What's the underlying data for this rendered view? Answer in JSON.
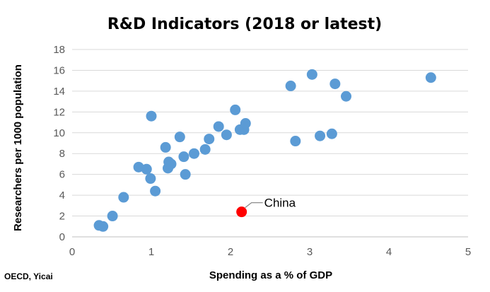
{
  "chart_data": {
    "type": "scatter",
    "title": "R&D Indicators (2018 or latest)",
    "xlabel": "Spending as a % of GDP",
    "ylabel": "Researchers per 1000 population",
    "xlim": [
      0,
      5
    ],
    "ylim": [
      0,
      18
    ],
    "x_ticks": [
      0,
      1,
      2,
      3,
      4,
      5
    ],
    "y_ticks": [
      0,
      2,
      4,
      6,
      8,
      10,
      12,
      14,
      16,
      18
    ],
    "grid": "horizontal",
    "colors": {
      "points": "#5b9bd5",
      "highlight": "#ff0000"
    },
    "points": [
      {
        "x": 0.34,
        "y": 1.1
      },
      {
        "x": 0.39,
        "y": 1.0
      },
      {
        "x": 0.51,
        "y": 2.0
      },
      {
        "x": 0.65,
        "y": 3.8
      },
      {
        "x": 0.84,
        "y": 6.7
      },
      {
        "x": 0.94,
        "y": 6.5
      },
      {
        "x": 0.99,
        "y": 5.6
      },
      {
        "x": 1.0,
        "y": 11.6
      },
      {
        "x": 1.05,
        "y": 4.4
      },
      {
        "x": 1.18,
        "y": 8.6
      },
      {
        "x": 1.21,
        "y": 6.6
      },
      {
        "x": 1.22,
        "y": 7.2
      },
      {
        "x": 1.25,
        "y": 7.0
      },
      {
        "x": 1.36,
        "y": 9.6
      },
      {
        "x": 1.41,
        "y": 7.7
      },
      {
        "x": 1.43,
        "y": 6.0
      },
      {
        "x": 1.54,
        "y": 8.0
      },
      {
        "x": 1.68,
        "y": 8.4
      },
      {
        "x": 1.73,
        "y": 9.4
      },
      {
        "x": 1.85,
        "y": 10.6
      },
      {
        "x": 1.95,
        "y": 9.8
      },
      {
        "x": 2.06,
        "y": 12.2
      },
      {
        "x": 2.12,
        "y": 10.3
      },
      {
        "x": 2.17,
        "y": 10.3
      },
      {
        "x": 2.19,
        "y": 10.9
      },
      {
        "x": 2.76,
        "y": 14.5
      },
      {
        "x": 2.82,
        "y": 9.2
      },
      {
        "x": 3.03,
        "y": 15.6
      },
      {
        "x": 3.13,
        "y": 9.7
      },
      {
        "x": 3.28,
        "y": 9.9
      },
      {
        "x": 3.32,
        "y": 14.7
      },
      {
        "x": 3.46,
        "y": 13.5
      },
      {
        "x": 4.53,
        "y": 15.3
      }
    ],
    "highlight": {
      "label": "China",
      "x": 2.14,
      "y": 2.4
    },
    "source": "OECD, Yicai"
  }
}
